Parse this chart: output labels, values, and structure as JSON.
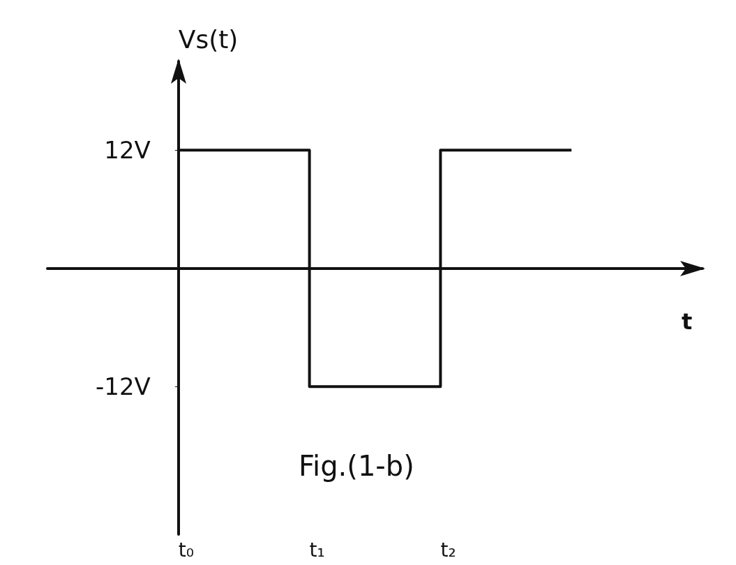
{
  "chart_data": {
    "type": "step",
    "ylabel": "Vs(t)",
    "xlabel": "t",
    "annotations": [
      "Fig.(1-b)"
    ],
    "categories": [
      null,
      "t₀",
      "t₁",
      "t₂",
      null,
      null
    ],
    "values": [
      null,
      12,
      -12,
      12,
      12,
      null
    ],
    "color": "#111111",
    "ylim": [
      -27,
      21
    ],
    "yticks": [
      {
        "value": -12,
        "label": "-12V"
      },
      {
        "value": 12,
        "label": "12V"
      }
    ],
    "grid": false,
    "marker": "none",
    "line_style": "solid"
  }
}
